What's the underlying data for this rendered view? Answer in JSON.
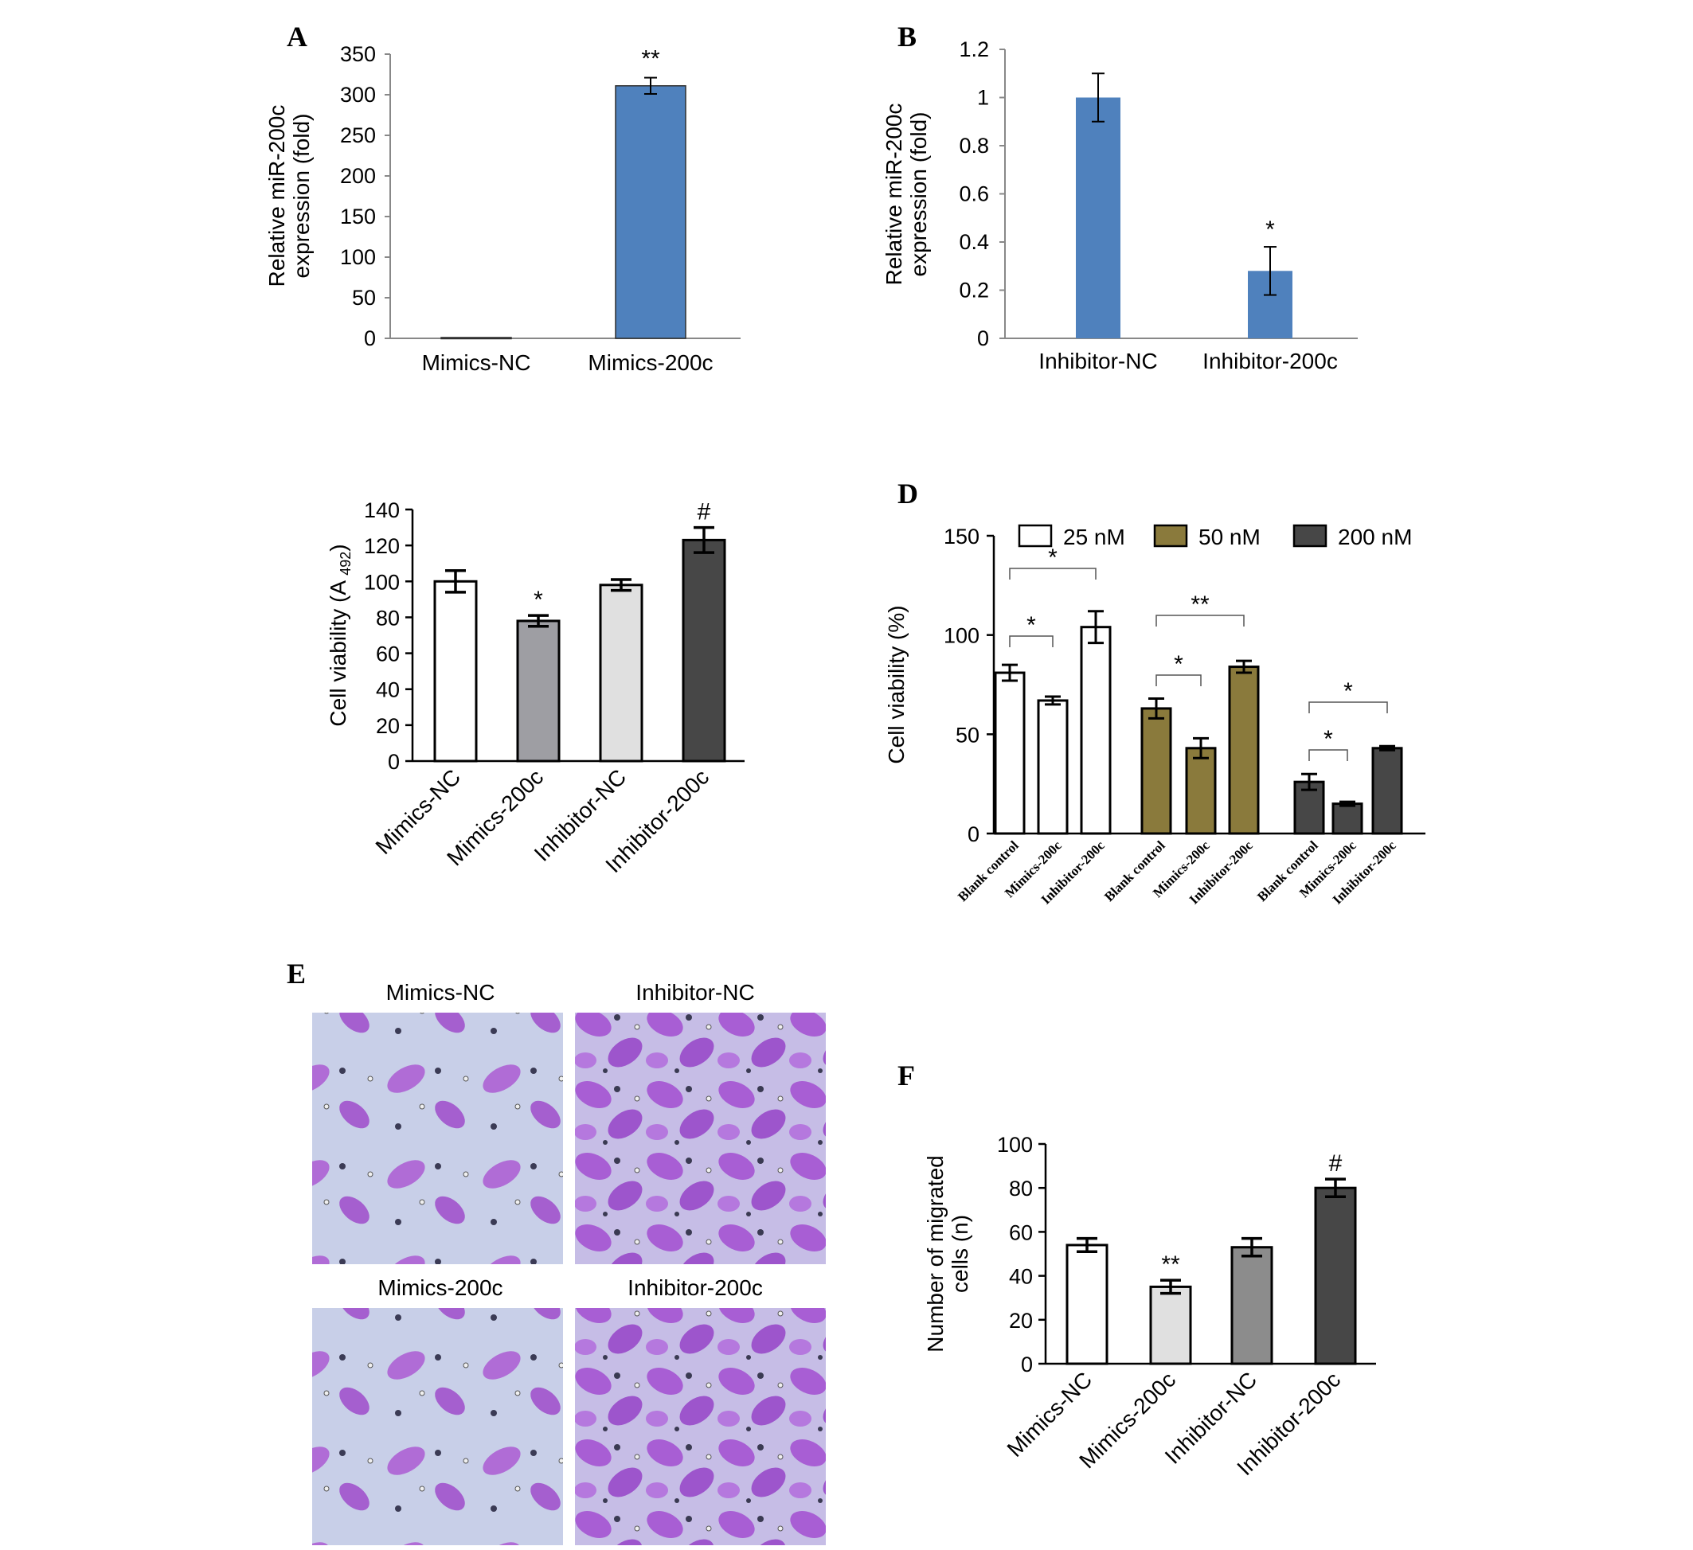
{
  "panels": {
    "A": "A",
    "B": "B",
    "D": "D",
    "E": "E",
    "F": "F"
  },
  "colors": {
    "blue": "#4f81bd",
    "olive": "#8a7a3c",
    "dark": "#474747",
    "gray": "#9e9ea3",
    "lightgray": "#e0e0e0",
    "midgray": "#8c8c8c",
    "stain_bg": "#c9cfe9",
    "stain_cell": "#a85fd0"
  },
  "chart_data": [
    {
      "id": "A",
      "type": "bar",
      "ylabel": [
        "Relative miR-200c",
        "expression (fold)"
      ],
      "categories": [
        "Mimics-NC",
        "Mimics-200c"
      ],
      "values": [
        1,
        311
      ],
      "errors": [
        0,
        10
      ],
      "annotations": [
        "",
        "**"
      ],
      "ylim": [
        0,
        350
      ],
      "yticks": [
        0,
        50,
        100,
        150,
        200,
        250,
        300,
        350
      ]
    },
    {
      "id": "B",
      "type": "bar",
      "ylabel": [
        "Relative miR-200c",
        "expression (fold)"
      ],
      "categories": [
        "Inhibitor-NC",
        "Inhibitor-200c"
      ],
      "values": [
        1.0,
        0.28
      ],
      "errors": [
        0.1,
        0.1
      ],
      "annotations": [
        "",
        "*"
      ],
      "ylim": [
        0,
        1.2
      ],
      "yticks": [
        "0",
        "0.2",
        "0.4",
        "0.6",
        "0.8",
        "1",
        "1.2"
      ]
    },
    {
      "id": "C",
      "type": "bar",
      "ylabel": "Cell viability (A",
      "ylabel_sub": "492",
      "ylabel_end": ")",
      "categories": [
        "Mimics-NC",
        "Mimics-200c",
        "Inhibitor-NC",
        "Inhibitor-200c"
      ],
      "values": [
        100,
        78,
        98,
        123
      ],
      "errors": [
        6,
        3,
        3,
        7
      ],
      "annotations": [
        "",
        "*",
        "",
        "#"
      ],
      "ylim": [
        0,
        140
      ],
      "yticks": [
        0,
        20,
        40,
        60,
        80,
        100,
        120,
        140
      ]
    },
    {
      "id": "D",
      "type": "bar",
      "ylabel": "Cell viability (%)",
      "legend": [
        "25 nM",
        "50 nM",
        "200 nM"
      ],
      "categories": [
        "Blank control",
        "Mimics-200c",
        "Inhibitor-200c"
      ],
      "series": [
        {
          "name": "25 nM",
          "values": [
            81,
            67,
            104
          ],
          "errors": [
            4,
            2,
            8
          ]
        },
        {
          "name": "50 nM",
          "values": [
            63,
            43,
            84
          ],
          "errors": [
            5,
            5,
            3
          ]
        },
        {
          "name": "200 nM",
          "values": [
            26,
            15,
            43
          ],
          "errors": [
            4,
            1,
            1
          ]
        }
      ],
      "brackets": [
        "*",
        "*",
        "*",
        "**",
        "*",
        "*"
      ],
      "ylim": [
        0,
        150
      ],
      "yticks": [
        0,
        50,
        100,
        150
      ]
    },
    {
      "id": "F",
      "type": "bar",
      "ylabel": [
        "Number of migrated",
        "cells (n)"
      ],
      "categories": [
        "Mimics-NC",
        "Mimics-200c",
        "Inhibitor-NC",
        "Inhibitor-200c"
      ],
      "values": [
        54,
        35,
        53,
        80
      ],
      "errors": [
        3,
        3,
        4,
        4
      ],
      "annotations": [
        "",
        "**",
        "",
        "#"
      ],
      "ylim": [
        0,
        100
      ],
      "yticks": [
        0,
        20,
        40,
        60,
        80,
        100
      ]
    }
  ],
  "images_E": [
    "Mimics-NC",
    "Inhibitor-NC",
    "Mimics-200c",
    "Inhibitor-200c"
  ]
}
